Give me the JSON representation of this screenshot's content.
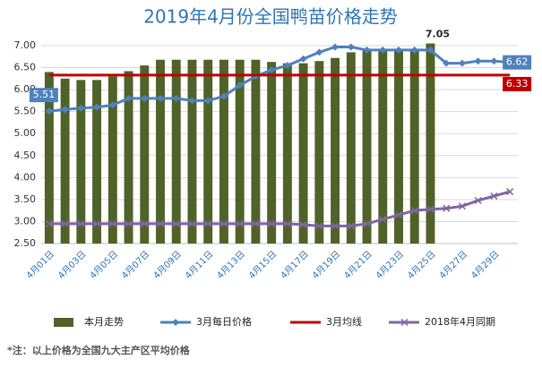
{
  "chart_data": {
    "type": "bar",
    "title": "2019年4月份全国鸭苗价格走势",
    "categories": [
      "4月01日",
      null,
      "4月03日",
      null,
      "4月05日",
      null,
      "4月07日",
      null,
      "4月09日",
      null,
      "4月11日",
      null,
      "4月13日",
      null,
      "4月15日",
      null,
      "4月17日",
      null,
      "4月19日",
      null,
      "4月21日",
      null,
      "4月23日",
      null,
      "4月25日",
      null,
      "4月27日",
      null,
      "4月29日",
      null
    ],
    "ylim": [
      2.5,
      7.0
    ],
    "yticks": [
      {
        "value": 2.5,
        "label": "2.50"
      },
      {
        "value": 3,
        "label": "3.00"
      },
      {
        "value": 3.5,
        "label": "3.50"
      },
      {
        "value": 4,
        "label": "4.00"
      },
      {
        "value": 4.5,
        "label": "4.50"
      },
      {
        "value": 5,
        "label": "5.00"
      },
      {
        "value": 5.5,
        "label": "5.50"
      },
      {
        "value": 6,
        "label": "6.00"
      },
      {
        "value": 6.5,
        "label": "6.50"
      },
      {
        "value": 7,
        "label": "7.00"
      }
    ],
    "grid": true,
    "series": [
      {
        "name": "本月走势",
        "type": "bar",
        "color": "#4f6228",
        "values": [
          6.4,
          6.25,
          6.22,
          6.22,
          6.3,
          6.42,
          6.55,
          6.68,
          6.68,
          6.68,
          6.68,
          6.68,
          6.68,
          6.68,
          6.63,
          6.6,
          6.6,
          6.65,
          6.72,
          6.85,
          6.9,
          6.9,
          6.9,
          6.9,
          7.05,
          null,
          null,
          null,
          null,
          null
        ]
      },
      {
        "name": "3月每日价格",
        "type": "line",
        "marker": "diamond",
        "color": "#4f81bd",
        "values": [
          5.51,
          5.55,
          5.58,
          5.6,
          5.65,
          5.8,
          5.8,
          5.8,
          5.8,
          5.75,
          5.75,
          5.85,
          6.1,
          6.3,
          6.45,
          6.55,
          6.7,
          6.85,
          6.97,
          6.97,
          6.9,
          6.9,
          6.9,
          6.9,
          6.9,
          6.6,
          6.6,
          6.65,
          6.65,
          6.62
        ]
      },
      {
        "name": "3月均线",
        "type": "line",
        "marker": "none",
        "color": "#c00000",
        "values": [
          6.33,
          6.33,
          6.33,
          6.33,
          6.33,
          6.33,
          6.33,
          6.33,
          6.33,
          6.33,
          6.33,
          6.33,
          6.33,
          6.33,
          6.33,
          6.33,
          6.33,
          6.33,
          6.33,
          6.33,
          6.33,
          6.33,
          6.33,
          6.33,
          6.33,
          6.33,
          6.33,
          6.33,
          6.33,
          6.33
        ]
      },
      {
        "name": "2018年4月同期",
        "type": "line",
        "marker": "x",
        "color": "#8064a2",
        "values": [
          2.95,
          2.95,
          2.95,
          2.95,
          2.95,
          2.95,
          2.95,
          2.95,
          2.95,
          2.95,
          2.95,
          2.95,
          2.95,
          2.95,
          2.95,
          2.95,
          2.93,
          2.9,
          2.9,
          2.9,
          2.95,
          3.05,
          3.15,
          3.25,
          3.28,
          3.3,
          3.35,
          3.48,
          3.58,
          3.68
        ]
      }
    ],
    "note": "*注：以上价格为全国九大主产区平均价格"
  }
}
